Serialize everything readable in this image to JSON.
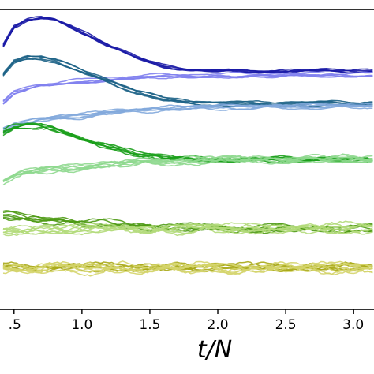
{
  "chart_data": {
    "type": "line",
    "title": "",
    "xlabel": "t/N",
    "ylabel": "",
    "xlim": [
      0.42,
      3.15
    ],
    "ylim": [
      0,
      1
    ],
    "grid": false,
    "legend": "none",
    "x_ticks": [
      {
        "value": 0.5,
        "label": "0.5"
      },
      {
        "value": 1.0,
        "label": "1.0"
      },
      {
        "value": 1.5,
        "label": "1.5"
      },
      {
        "value": 2.0,
        "label": "2.0"
      },
      {
        "value": 2.5,
        "label": "2.5"
      },
      {
        "value": 3.0,
        "label": "3.0"
      }
    ],
    "x_tick_label_overrides": {
      "0.5": ".5",
      "3.0": "3.0"
    },
    "groups": [
      {
        "color": "#1a1aa6",
        "lines": 5,
        "noise": 0.003,
        "x": [
          0.42,
          0.5,
          0.6,
          0.7,
          0.8,
          0.9,
          1.0,
          1.2,
          1.4,
          1.6,
          1.8,
          2.0,
          2.4,
          2.8,
          3.15
        ],
        "y": [
          0.88,
          0.94,
          0.965,
          0.972,
          0.968,
          0.95,
          0.925,
          0.88,
          0.84,
          0.812,
          0.8,
          0.795,
          0.795,
          0.797,
          0.795
        ]
      },
      {
        "color": "#8080ee",
        "lines": 5,
        "noise": 0.003,
        "x": [
          0.42,
          0.5,
          0.7,
          1.0,
          1.3,
          1.6,
          2.0,
          2.5,
          3.15
        ],
        "y": [
          0.69,
          0.722,
          0.748,
          0.762,
          0.772,
          0.778,
          0.78,
          0.782,
          0.783
        ]
      },
      {
        "color": "#1c6286",
        "lines": 5,
        "noise": 0.003,
        "x": [
          0.42,
          0.5,
          0.6,
          0.7,
          0.8,
          0.9,
          1.0,
          1.2,
          1.4,
          1.6,
          1.8,
          2.0,
          2.4,
          2.8,
          3.15
        ],
        "y": [
          0.78,
          0.825,
          0.84,
          0.84,
          0.83,
          0.81,
          0.792,
          0.76,
          0.725,
          0.7,
          0.69,
          0.685,
          0.685,
          0.686,
          0.685
        ]
      },
      {
        "color": "#82a8dc",
        "lines": 6,
        "noise": 0.004,
        "x": [
          0.42,
          0.5,
          0.7,
          1.0,
          1.3,
          1.6,
          2.0,
          2.5,
          3.15
        ],
        "y": [
          0.598,
          0.612,
          0.63,
          0.645,
          0.658,
          0.668,
          0.672,
          0.675,
          0.676
        ]
      },
      {
        "color": "#1a9e1a",
        "lines": 6,
        "noise": 0.005,
        "x": [
          0.42,
          0.5,
          0.6,
          0.7,
          0.8,
          0.9,
          1.0,
          1.2,
          1.4,
          1.6,
          1.8,
          2.0,
          2.4,
          2.8,
          3.15
        ],
        "y": [
          0.59,
          0.605,
          0.612,
          0.61,
          0.6,
          0.585,
          0.568,
          0.54,
          0.518,
          0.505,
          0.5,
          0.498,
          0.498,
          0.499,
          0.498
        ]
      },
      {
        "color": "#8ed88e",
        "lines": 7,
        "noise": 0.007,
        "x": [
          0.42,
          0.5,
          0.7,
          1.0,
          1.3,
          1.6,
          2.0,
          2.5,
          3.15
        ],
        "y": [
          0.43,
          0.445,
          0.462,
          0.476,
          0.486,
          0.493,
          0.498,
          0.5,
          0.5
        ]
      },
      {
        "color": "#4e9a14",
        "lines": 6,
        "noise": 0.007,
        "x": [
          0.42,
          0.5,
          0.7,
          1.0,
          1.3,
          1.6,
          2.0,
          2.5,
          3.15
        ],
        "y": [
          0.315,
          0.313,
          0.3,
          0.29,
          0.282,
          0.276,
          0.272,
          0.27,
          0.27
        ]
      },
      {
        "color": "#b2da7a",
        "lines": 7,
        "noise": 0.01,
        "x": [
          0.42,
          0.5,
          0.7,
          1.0,
          1.3,
          1.6,
          2.0,
          2.5,
          3.15
        ],
        "y": [
          0.262,
          0.264,
          0.266,
          0.268,
          0.269,
          0.27,
          0.27,
          0.271,
          0.271
        ]
      },
      {
        "color": "#a8a816",
        "lines": 6,
        "noise": 0.008,
        "x": [
          0.42,
          3.15
        ],
        "y": [
          0.14,
          0.14
        ]
      },
      {
        "color": "#d4d46a",
        "lines": 7,
        "noise": 0.011,
        "x": [
          0.42,
          3.15
        ],
        "y": [
          0.136,
          0.138
        ]
      }
    ]
  }
}
